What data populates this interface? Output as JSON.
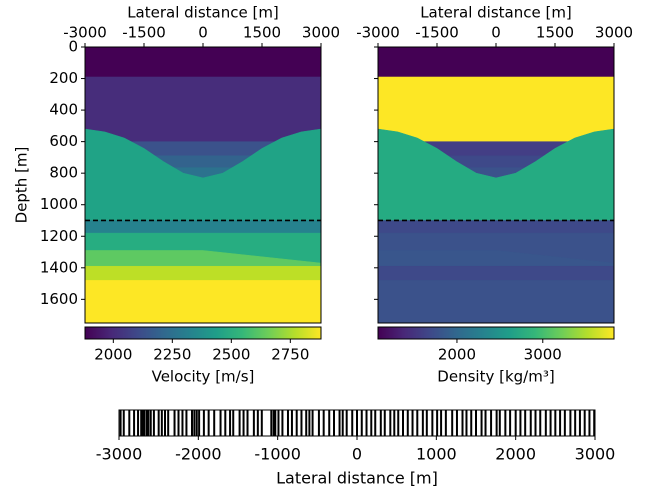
{
  "chart_data": [
    {
      "type": "layered_model",
      "xlabel": "Lateral distance [m]",
      "ylabel": "Depth [m]",
      "xlim": [
        -3000,
        3000
      ],
      "xticks": [
        -3000,
        -1500,
        0,
        1500,
        3000
      ],
      "ylim": [
        0,
        1750
      ],
      "y_inverted": true,
      "yticks": [
        0,
        200,
        400,
        600,
        800,
        1000,
        1200,
        1400,
        1600
      ],
      "ytick_labels": true,
      "reference_depth": 1100,
      "layers": [
        {
          "top_x": [
            -3000,
            3000
          ],
          "top_depth": [
            0,
            0
          ],
          "value": 1890,
          "color": "#440154"
        },
        {
          "top_x": [
            -3000,
            3000
          ],
          "top_depth": [
            190,
            190
          ],
          "value": 2030,
          "color": "#472d7b"
        },
        {
          "top_x": [
            -3000,
            3000
          ],
          "top_depth": [
            600,
            600
          ],
          "value": 2160,
          "color": "#3b528b"
        },
        {
          "top_x": [
            -3000,
            3000
          ],
          "top_depth": [
            690,
            690
          ],
          "value": 2240,
          "color": "#33638d"
        },
        {
          "top_x": [
            -3000,
            3000
          ],
          "top_depth": [
            765,
            765
          ],
          "value": 2310,
          "color": "#2c728e"
        },
        {
          "top_x": [
            -3000,
            -2500,
            -2000,
            -1500,
            -1000,
            -500,
            0,
            500,
            1000,
            1500,
            2000,
            2500,
            3000
          ],
          "top_depth": [
            520,
            538,
            577,
            643,
            727,
            800,
            830,
            800,
            727,
            643,
            577,
            538,
            520
          ],
          "value": 2490,
          "color": "#20a386"
        },
        {
          "top_x": [
            -3000,
            3000
          ],
          "top_depth": [
            1100,
            1100
          ],
          "value": 2360,
          "color": "#26828e"
        },
        {
          "top_x": [
            -3000,
            3000
          ],
          "top_depth": [
            1180,
            1180
          ],
          "value": 2520,
          "color": "#27ad81"
        },
        {
          "top_x": [
            -3000,
            0,
            3000
          ],
          "top_depth": [
            1290,
            1290,
            1370
          ],
          "value": 2650,
          "color": "#5ec962"
        },
        {
          "top_x": [
            -3000,
            3000
          ],
          "top_depth": [
            1390,
            1390
          ],
          "value": 2780,
          "color": "#bddf26"
        },
        {
          "top_x": [
            -3000,
            3000
          ],
          "top_depth": [
            1480,
            1480
          ],
          "value": 2870,
          "color": "#fde725"
        }
      ],
      "colorbar": {
        "label": "Velocity [m/s]",
        "lim": [
          1880,
          2880
        ],
        "ticks": [
          2000,
          2250,
          2500,
          2750
        ],
        "colormap": "viridis"
      }
    },
    {
      "type": "layered_model",
      "xlabel": "Lateral distance [m]",
      "xlim": [
        -3000,
        3000
      ],
      "xticks": [
        -3000,
        -1500,
        0,
        1500,
        3000
      ],
      "ylim": [
        0,
        1750
      ],
      "y_inverted": true,
      "yticks": [
        0,
        200,
        400,
        600,
        800,
        1000,
        1200,
        1400,
        1600
      ],
      "ytick_labels": false,
      "reference_depth": 1100,
      "layers": [
        {
          "top_x": [
            -3000,
            3000
          ],
          "top_depth": [
            0,
            0
          ],
          "value": 1100,
          "color": "#440154"
        },
        {
          "top_x": [
            -3000,
            3000
          ],
          "top_depth": [
            190,
            190
          ],
          "value": 3800,
          "color": "#fde725"
        },
        {
          "top_x": [
            -3000,
            3000
          ],
          "top_depth": [
            600,
            600
          ],
          "value": 1410,
          "color": "#433e85"
        },
        {
          "top_x": [
            -3000,
            3000
          ],
          "top_depth": [
            690,
            690
          ],
          "value": 1580,
          "color": "#3e4989"
        },
        {
          "top_x": [
            -3000,
            3000
          ],
          "top_depth": [
            765,
            765
          ],
          "value": 1690,
          "color": "#3b528b"
        },
        {
          "top_x": [
            -3000,
            -2500,
            -2000,
            -1500,
            -1000,
            -500,
            0,
            500,
            1000,
            1500,
            2000,
            2500,
            3000
          ],
          "top_depth": [
            520,
            538,
            577,
            643,
            727,
            800,
            830,
            800,
            727,
            643,
            577,
            538,
            520
          ],
          "value": 2750,
          "color": "#25ab82"
        },
        {
          "top_x": [
            -3000,
            3000
          ],
          "top_depth": [
            1100,
            1100
          ],
          "value": 1580,
          "color": "#3e4989"
        },
        {
          "top_x": [
            -3000,
            3000
          ],
          "top_depth": [
            1180,
            1180
          ],
          "value": 1690,
          "color": "#3b528b"
        },
        {
          "top_x": [
            -3000,
            0,
            3000
          ],
          "top_depth": [
            1290,
            1290,
            1370
          ],
          "value": 1770,
          "color": "#39568c"
        },
        {
          "top_x": [
            -3000,
            3000
          ],
          "top_depth": [
            1390,
            1390
          ],
          "value": 1580,
          "color": "#3e4989"
        },
        {
          "top_x": [
            -3000,
            3000
          ],
          "top_depth": [
            1480,
            1480
          ],
          "value": 1690,
          "color": "#3b528b"
        }
      ],
      "colorbar": {
        "label": "Density [kg/m³]",
        "lim": [
          1080,
          3830
        ],
        "ticks": [
          2000,
          3000
        ],
        "colormap": "viridis"
      }
    },
    {
      "type": "rug",
      "xlabel": "Lateral distance [m]",
      "xlim": [
        -3000,
        3000
      ],
      "xticks": [
        -3000,
        -2000,
        -1000,
        0,
        1000,
        2000,
        3000
      ],
      "color": "#000000",
      "positions": [
        -2980,
        -2940,
        -2870,
        -2810,
        -2760,
        -2720,
        -2700,
        -2680,
        -2650,
        -2630,
        -2600,
        -2560,
        -2500,
        -2460,
        -2420,
        -2380,
        -2300,
        -2250,
        -2200,
        -2150,
        -2080,
        -2050,
        -2020,
        -1990,
        -1930,
        -1870,
        -1800,
        -1720,
        -1660,
        -1600,
        -1560,
        -1480,
        -1430,
        -1380,
        -1300,
        -1250,
        -1200,
        -1080,
        -1050,
        -1030,
        -990,
        -940,
        -870,
        -820,
        -760,
        -700,
        -640,
        -600,
        -560,
        -480,
        -420,
        -350,
        -290,
        -220,
        -180,
        -130,
        -60,
        0,
        60,
        120,
        180,
        230,
        300,
        350,
        420,
        470,
        520,
        580,
        640,
        700,
        760,
        830,
        880,
        950,
        1010,
        1060,
        1120,
        1200,
        1260,
        1330,
        1380,
        1440,
        1500,
        1570,
        1620,
        1690,
        1760,
        1800,
        1870,
        1930,
        2000,
        2060,
        2120,
        2190,
        2250,
        2310,
        2380,
        2440,
        2500,
        2560,
        2620,
        2690,
        2750,
        2810,
        2870,
        2930,
        2990
      ]
    }
  ]
}
